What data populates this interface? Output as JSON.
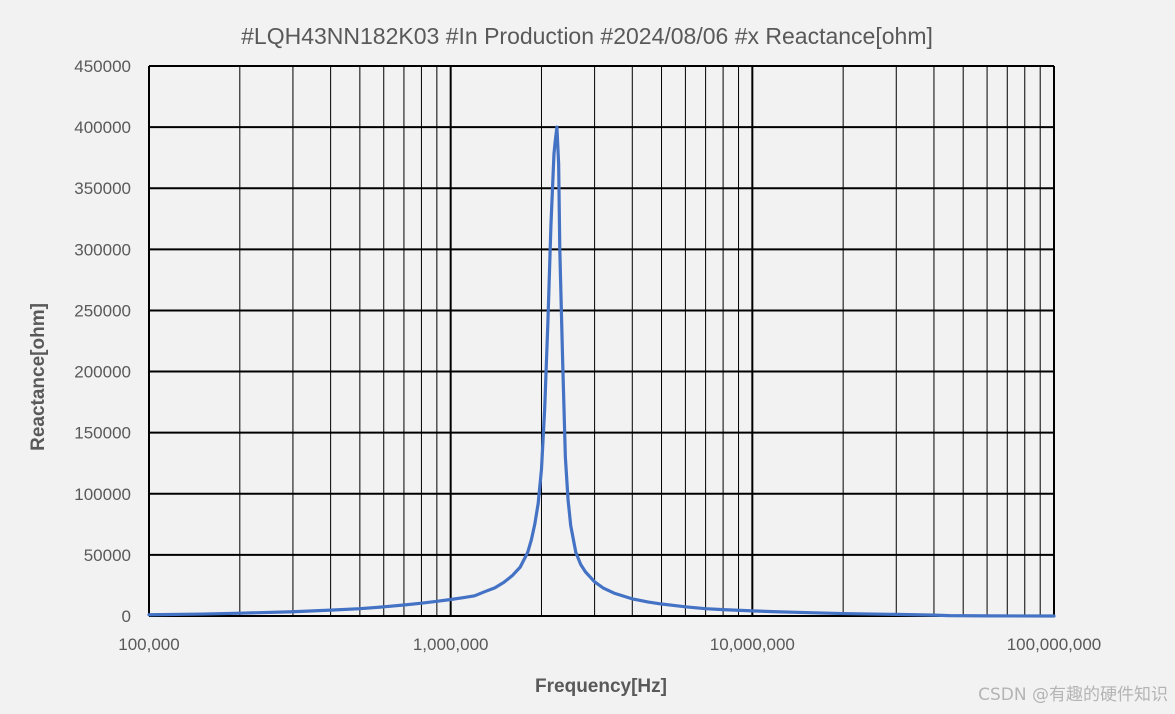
{
  "chart_data": {
    "type": "line",
    "title": "#LQH43NN182K03 #In Production #2024/08/06 #x Reactance[ohm]",
    "xlabel": "Frequency[Hz]",
    "ylabel": "Reactance[ohm]",
    "x_scale": "log",
    "xlim": [
      100000,
      100000000
    ],
    "ylim": [
      0,
      450000
    ],
    "x_ticks": [
      100000,
      1000000,
      10000000,
      100000000
    ],
    "x_tick_labels": [
      "100,000",
      "1,000,000",
      "10,000,000",
      "100,000,000"
    ],
    "y_ticks": [
      0,
      50000,
      100000,
      150000,
      200000,
      250000,
      300000,
      350000,
      400000,
      450000
    ],
    "y_tick_labels": [
      "0",
      "50000",
      "100000",
      "150000",
      "200000",
      "250000",
      "300000",
      "350000",
      "400000",
      "450000"
    ],
    "grid": true,
    "line_color": "#4472c4",
    "series": [
      {
        "x": [
          100000,
          150000,
          200000,
          300000,
          400000,
          500000,
          600000,
          700000,
          800000,
          900000,
          1000000,
          1100000,
          1200000,
          1300000,
          1400000,
          1500000,
          1600000,
          1700000,
          1800000,
          1850000,
          1900000,
          1950000,
          2000000,
          2050000,
          2100000,
          2150000,
          2200000,
          2220000,
          2250000,
          2280000,
          2300000,
          2350000,
          2400000,
          2450000,
          2500000,
          2600000,
          2700000,
          2800000,
          3000000,
          3200000,
          3500000,
          4000000,
          4500000,
          5000000,
          6000000,
          7000000,
          8000000,
          10000000,
          12000000,
          15000000,
          20000000,
          30000000,
          40000000,
          45000000,
          60000000,
          100000000
        ],
        "y": [
          1000,
          1600,
          2300,
          3500,
          4800,
          6000,
          7500,
          9000,
          10500,
          12000,
          13500,
          15000,
          16500,
          20000,
          23000,
          27500,
          33000,
          40000,
          52000,
          62000,
          75000,
          92000,
          120000,
          170000,
          240000,
          320000,
          378000,
          388000,
          400000,
          370000,
          300000,
          210000,
          130000,
          95000,
          74000,
          52000,
          42000,
          36000,
          28000,
          23000,
          18500,
          14000,
          11500,
          9800,
          7500,
          6000,
          5200,
          4200,
          3500,
          2800,
          2000,
          1300,
          700,
          300,
          100,
          0
        ]
      }
    ]
  },
  "watermark": "CSDN @有趣的硬件知识"
}
